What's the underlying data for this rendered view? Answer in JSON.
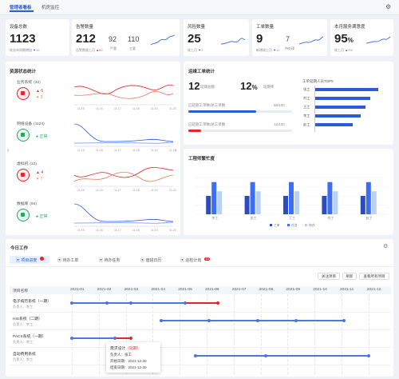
{
  "tabs": [
    "管理者看板",
    "机房监控"
  ],
  "kpi": [
    {
      "title": "设备总数",
      "value": "1123",
      "sub": "较去年同期增加",
      "delta": "12"
    },
    {
      "title": "告警数量",
      "value": "212",
      "sub": "告警数量上月",
      "delta": "80",
      "v2": "92",
      "v2l": "严重",
      "v3": "110",
      "v3l": "主要"
    },
    {
      "title": "风险数量",
      "value": "25",
      "sub": "较上月",
      "delta": "7"
    },
    {
      "title": "工单数量",
      "value": "9",
      "sub": "新增较上月",
      "delta": "12",
      "v2": "7",
      "v2l": "待处理"
    },
    {
      "title": "本月服务满意度",
      "value": "95",
      "unit": "%",
      "sub": "较上月",
      "delta": "7%"
    }
  ],
  "resource": {
    "title": "资源状态统计",
    "items": [
      {
        "name": "业务系统",
        "count": "(32)",
        "a": "6",
        "b": "3"
      },
      {
        "name": "网络设备",
        "count": "(1124)",
        "status": "正常"
      },
      {
        "name": "虚拟机",
        "count": "(12)",
        "a": "4",
        "b": "7"
      },
      {
        "name": "数据库",
        "count": "(94)",
        "status": "正常"
      }
    ],
    "xticks": [
      "11-15",
      "11-16",
      "11-17",
      "11-18",
      "11-19",
      "11-20"
    ]
  },
  "orders": {
    "title": "运维工单统计",
    "total": "12",
    "total_label": "延期总数",
    "rate": "12",
    "rate_label": "延期率",
    "p1": "已延期工单数/总工单数",
    "p1v": "65/100",
    "p2": "已延期工单数/总工单数",
    "p2v": "12/100",
    "top_title": "工单延期人员TOP5",
    "top": [
      {
        "n": "张工",
        "v": 100
      },
      {
        "n": "刘工",
        "v": 88
      },
      {
        "n": "王工",
        "v": 80
      },
      {
        "n": "李工",
        "v": 72
      },
      {
        "n": "赵工",
        "v": 60
      }
    ]
  },
  "engineer": {
    "title": "工程师繁忙度",
    "chart_data": {
      "type": "bar",
      "categories": [
        "李工",
        "张工",
        "王工",
        "刘工",
        "赵工"
      ],
      "series": [
        {
          "name": "工单",
          "values": [
            40,
            40,
            40,
            40,
            40
          ]
        },
        {
          "name": "任务",
          "values": [
            70,
            70,
            70,
            70,
            70
          ]
        },
        {
          "name": "待办",
          "values": [
            50,
            50,
            50,
            50,
            50
          ]
        }
      ],
      "ylim": [
        0,
        80
      ]
    }
  },
  "today": {
    "title": "今日工作",
    "tabs": [
      {
        "label": "项目进度",
        "badge": ""
      },
      {
        "label": "待办工单",
        "badge": ""
      },
      {
        "label": "待办任务",
        "badge": ""
      },
      {
        "label": "值班日历",
        "badge": ""
      },
      {
        "label": "巡检计划",
        "badge": "10"
      }
    ],
    "buttons": [
      "关注项目",
      "刷新",
      "查看所有项目"
    ],
    "head": "项目名称",
    "months": [
      "2021-01",
      "2021-02",
      "2021-03",
      "2021-04",
      "2021-05",
      "2021-06",
      "2021-07",
      "2021-08",
      "2021-09",
      "2021-10",
      "2021-11",
      "2021-12"
    ],
    "projects": [
      {
        "name": "电子病历系统（一期）",
        "owner": "负责人：李工"
      },
      {
        "name": "HIS系统（二期）",
        "owner": "负责人：李工"
      },
      {
        "name": "PACS系统（一期）",
        "owner": "负责人：李工"
      },
      {
        "name": "自动费用系统",
        "owner": "负责人：李工"
      }
    ],
    "tooltip": {
      "t": "需求设计",
      "tag": "（延期）",
      "l1": "负责人：张工",
      "l2": "开始日期：2021-12-30",
      "l3": "结束日期：2021-12-30"
    }
  },
  "colors": {
    "blue": "#2a5bd8",
    "red": "#e0262e",
    "green": "#2aa565"
  }
}
